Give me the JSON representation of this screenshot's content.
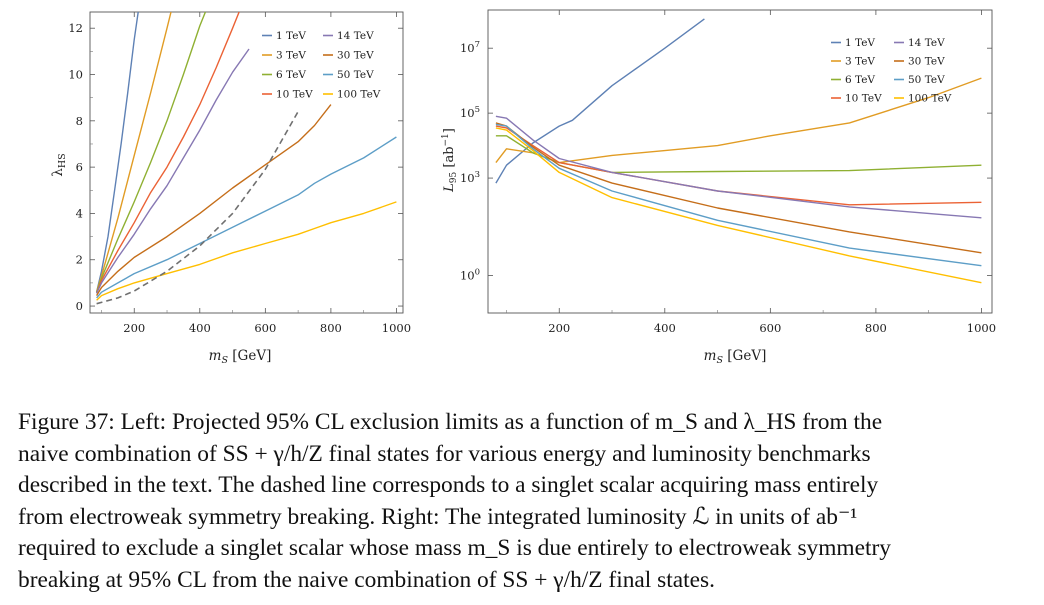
{
  "caption": {
    "lines": [
      "Figure 37: Left: Projected 95% CL exclusion limits as a function of m_S and λ_HS from the",
      "naive combination of SS + γ/h/Z final states for various energy and luminosity benchmarks",
      "described in the text. The dashed line corresponds to a singlet scalar acquiring mass entirely",
      "from electroweak symmetry breaking. Right: The integrated luminosity ℒ in units of ab⁻¹",
      "required to exclude a singlet scalar whose mass m_S is due entirely to electroweak symmetry",
      "breaking at 95% CL from the naive combination of SS + γ/h/Z final states."
    ]
  },
  "colors": {
    "1 TeV": "#5e81b5",
    "3 TeV": "#e19c24",
    "6 TeV": "#8fb032",
    "10 TeV": "#eb6235",
    "14 TeV": "#8778b3",
    "30 TeV": "#c56e1a",
    "50 TeV": "#5d9ec7",
    "100 TeV": "#ffbf00",
    "dashed": "#707070"
  },
  "chart_data": [
    {
      "type": "line",
      "xlabel": "m_S [GeV]",
      "ylabel": "λ_HS",
      "xlim": [
        65,
        1020
      ],
      "ylim": [
        -0.3,
        12.7
      ],
      "xticks": [
        200,
        400,
        600,
        800,
        1000
      ],
      "yticks": [
        0,
        2,
        4,
        6,
        8,
        10,
        12
      ],
      "grid": false,
      "legend": {
        "position": "top-right",
        "columns": [
          [
            "1 TeV",
            "3 TeV",
            "6 TeV",
            "10 TeV"
          ],
          [
            "14 TeV",
            "30 TeV",
            "50 TeV",
            "100 TeV"
          ]
        ]
      },
      "series": [
        {
          "name": "1 TeV",
          "x": [
            85,
            100,
            120,
            140,
            160,
            180,
            200,
            212
          ],
          "y": [
            0.6,
            1.5,
            3.0,
            5.0,
            7.0,
            9.2,
            11.5,
            12.7
          ]
        },
        {
          "name": "3 TeV",
          "x": [
            85,
            100,
            150,
            200,
            250,
            300,
            312
          ],
          "y": [
            0.6,
            1.3,
            3.8,
            6.5,
            9.2,
            12.0,
            12.7
          ]
        },
        {
          "name": "6 TeV",
          "x": [
            85,
            100,
            150,
            200,
            250,
            300,
            350,
            400,
            417
          ],
          "y": [
            0.6,
            1.2,
            2.9,
            4.5,
            6.2,
            8.0,
            10.0,
            12.1,
            12.7
          ]
        },
        {
          "name": "10 TeV",
          "x": [
            85,
            100,
            150,
            200,
            250,
            300,
            350,
            400,
            450,
            500,
            520
          ],
          "y": [
            0.55,
            1.1,
            2.4,
            3.6,
            4.9,
            6.0,
            7.3,
            8.7,
            10.3,
            12.0,
            12.7
          ]
        },
        {
          "name": "14 TeV",
          "x": [
            85,
            100,
            150,
            200,
            250,
            300,
            350,
            400,
            450,
            500,
            550
          ],
          "y": [
            0.55,
            1.0,
            2.1,
            3.1,
            4.2,
            5.2,
            6.4,
            7.6,
            8.9,
            10.1,
            11.1
          ]
        },
        {
          "name": "30 TeV",
          "x": [
            85,
            100,
            150,
            200,
            300,
            400,
            500,
            600,
            700,
            750,
            800
          ],
          "y": [
            0.45,
            0.8,
            1.5,
            2.1,
            3.0,
            4.0,
            5.1,
            6.1,
            7.1,
            7.8,
            8.7
          ]
        },
        {
          "name": "50 TeV",
          "x": [
            85,
            100,
            150,
            200,
            300,
            400,
            500,
            600,
            700,
            750,
            800,
            900,
            1000
          ],
          "y": [
            0.35,
            0.6,
            1.0,
            1.4,
            2.0,
            2.7,
            3.4,
            4.1,
            4.8,
            5.3,
            5.7,
            6.4,
            7.3
          ]
        },
        {
          "name": "100 TeV",
          "x": [
            85,
            100,
            150,
            200,
            300,
            400,
            500,
            600,
            700,
            750,
            800,
            900,
            1000
          ],
          "y": [
            0.25,
            0.45,
            0.75,
            1.0,
            1.4,
            1.8,
            2.3,
            2.7,
            3.1,
            3.35,
            3.6,
            4.0,
            4.5
          ]
        },
        {
          "name": "",
          "style": "dashed",
          "x": [
            85,
            150,
            200,
            300,
            400,
            500,
            600,
            700
          ],
          "y": [
            0.1,
            0.35,
            0.65,
            1.5,
            2.6,
            4.0,
            5.9,
            8.4
          ]
        }
      ]
    },
    {
      "type": "line",
      "xlabel": "m_S [GeV]",
      "ylabel": "L_95 [ab⁻¹]",
      "xscale": "linear",
      "yscale": "log",
      "xlim": [
        65,
        1020
      ],
      "ylim": [
        0.07,
        150000000.0
      ],
      "xticks": [
        200,
        400,
        600,
        800,
        1000
      ],
      "yticks": [
        1,
        1000,
        100000,
        10000000
      ],
      "ytick_labels": [
        "10⁰",
        "10³",
        "10⁵",
        "10⁷"
      ],
      "grid": false,
      "legend": {
        "position": "top-right",
        "columns": [
          [
            "1 TeV",
            "3 TeV",
            "6 TeV",
            "10 TeV"
          ],
          [
            "14 TeV",
            "30 TeV",
            "50 TeV",
            "100 TeV"
          ]
        ]
      },
      "series": [
        {
          "name": "1 TeV",
          "x": [
            80,
            100,
            150,
            200,
            225,
            300,
            400,
            475
          ],
          "y": [
            700,
            2500,
            12000,
            40000,
            60000,
            700000,
            10000000,
            80000000
          ]
        },
        {
          "name": "3 TeV",
          "x": [
            80,
            100,
            150,
            200,
            300,
            400,
            500,
            600,
            750,
            900,
            1000
          ],
          "y": [
            3000,
            8000,
            6000,
            3000,
            5000,
            7000,
            10000,
            20000,
            50000,
            300000,
            1200000
          ]
        },
        {
          "name": "6 TeV",
          "x": [
            80,
            100,
            150,
            200,
            300,
            500,
            750,
            1000
          ],
          "y": [
            20000,
            20000,
            6000,
            3000,
            1500,
            1600,
            1700,
            2500
          ]
        },
        {
          "name": "10 TeV",
          "x": [
            80,
            100,
            150,
            200,
            300,
            500,
            750,
            1000
          ],
          "y": [
            40000,
            35000,
            10000,
            3000,
            1500,
            400,
            150,
            180
          ]
        },
        {
          "name": "14 TeV",
          "x": [
            80,
            100,
            150,
            200,
            300,
            500,
            750,
            1000
          ],
          "y": [
            80000,
            70000,
            15000,
            4000,
            1500,
            400,
            130,
            60
          ]
        },
        {
          "name": "30 TeV",
          "x": [
            80,
            100,
            150,
            200,
            300,
            500,
            750,
            1000
          ],
          "y": [
            50000,
            40000,
            9000,
            2500,
            700,
            120,
            22,
            5
          ]
        },
        {
          "name": "50 TeV",
          "x": [
            80,
            100,
            150,
            200,
            300,
            500,
            750,
            1000
          ],
          "y": [
            45000,
            40000,
            8000,
            2000,
            400,
            50,
            7,
            2
          ]
        },
        {
          "name": "100 TeV",
          "x": [
            80,
            100,
            150,
            200,
            300,
            500,
            750,
            1000
          ],
          "y": [
            35000,
            30000,
            7000,
            1500,
            250,
            35,
            4,
            0.6
          ]
        }
      ]
    }
  ]
}
